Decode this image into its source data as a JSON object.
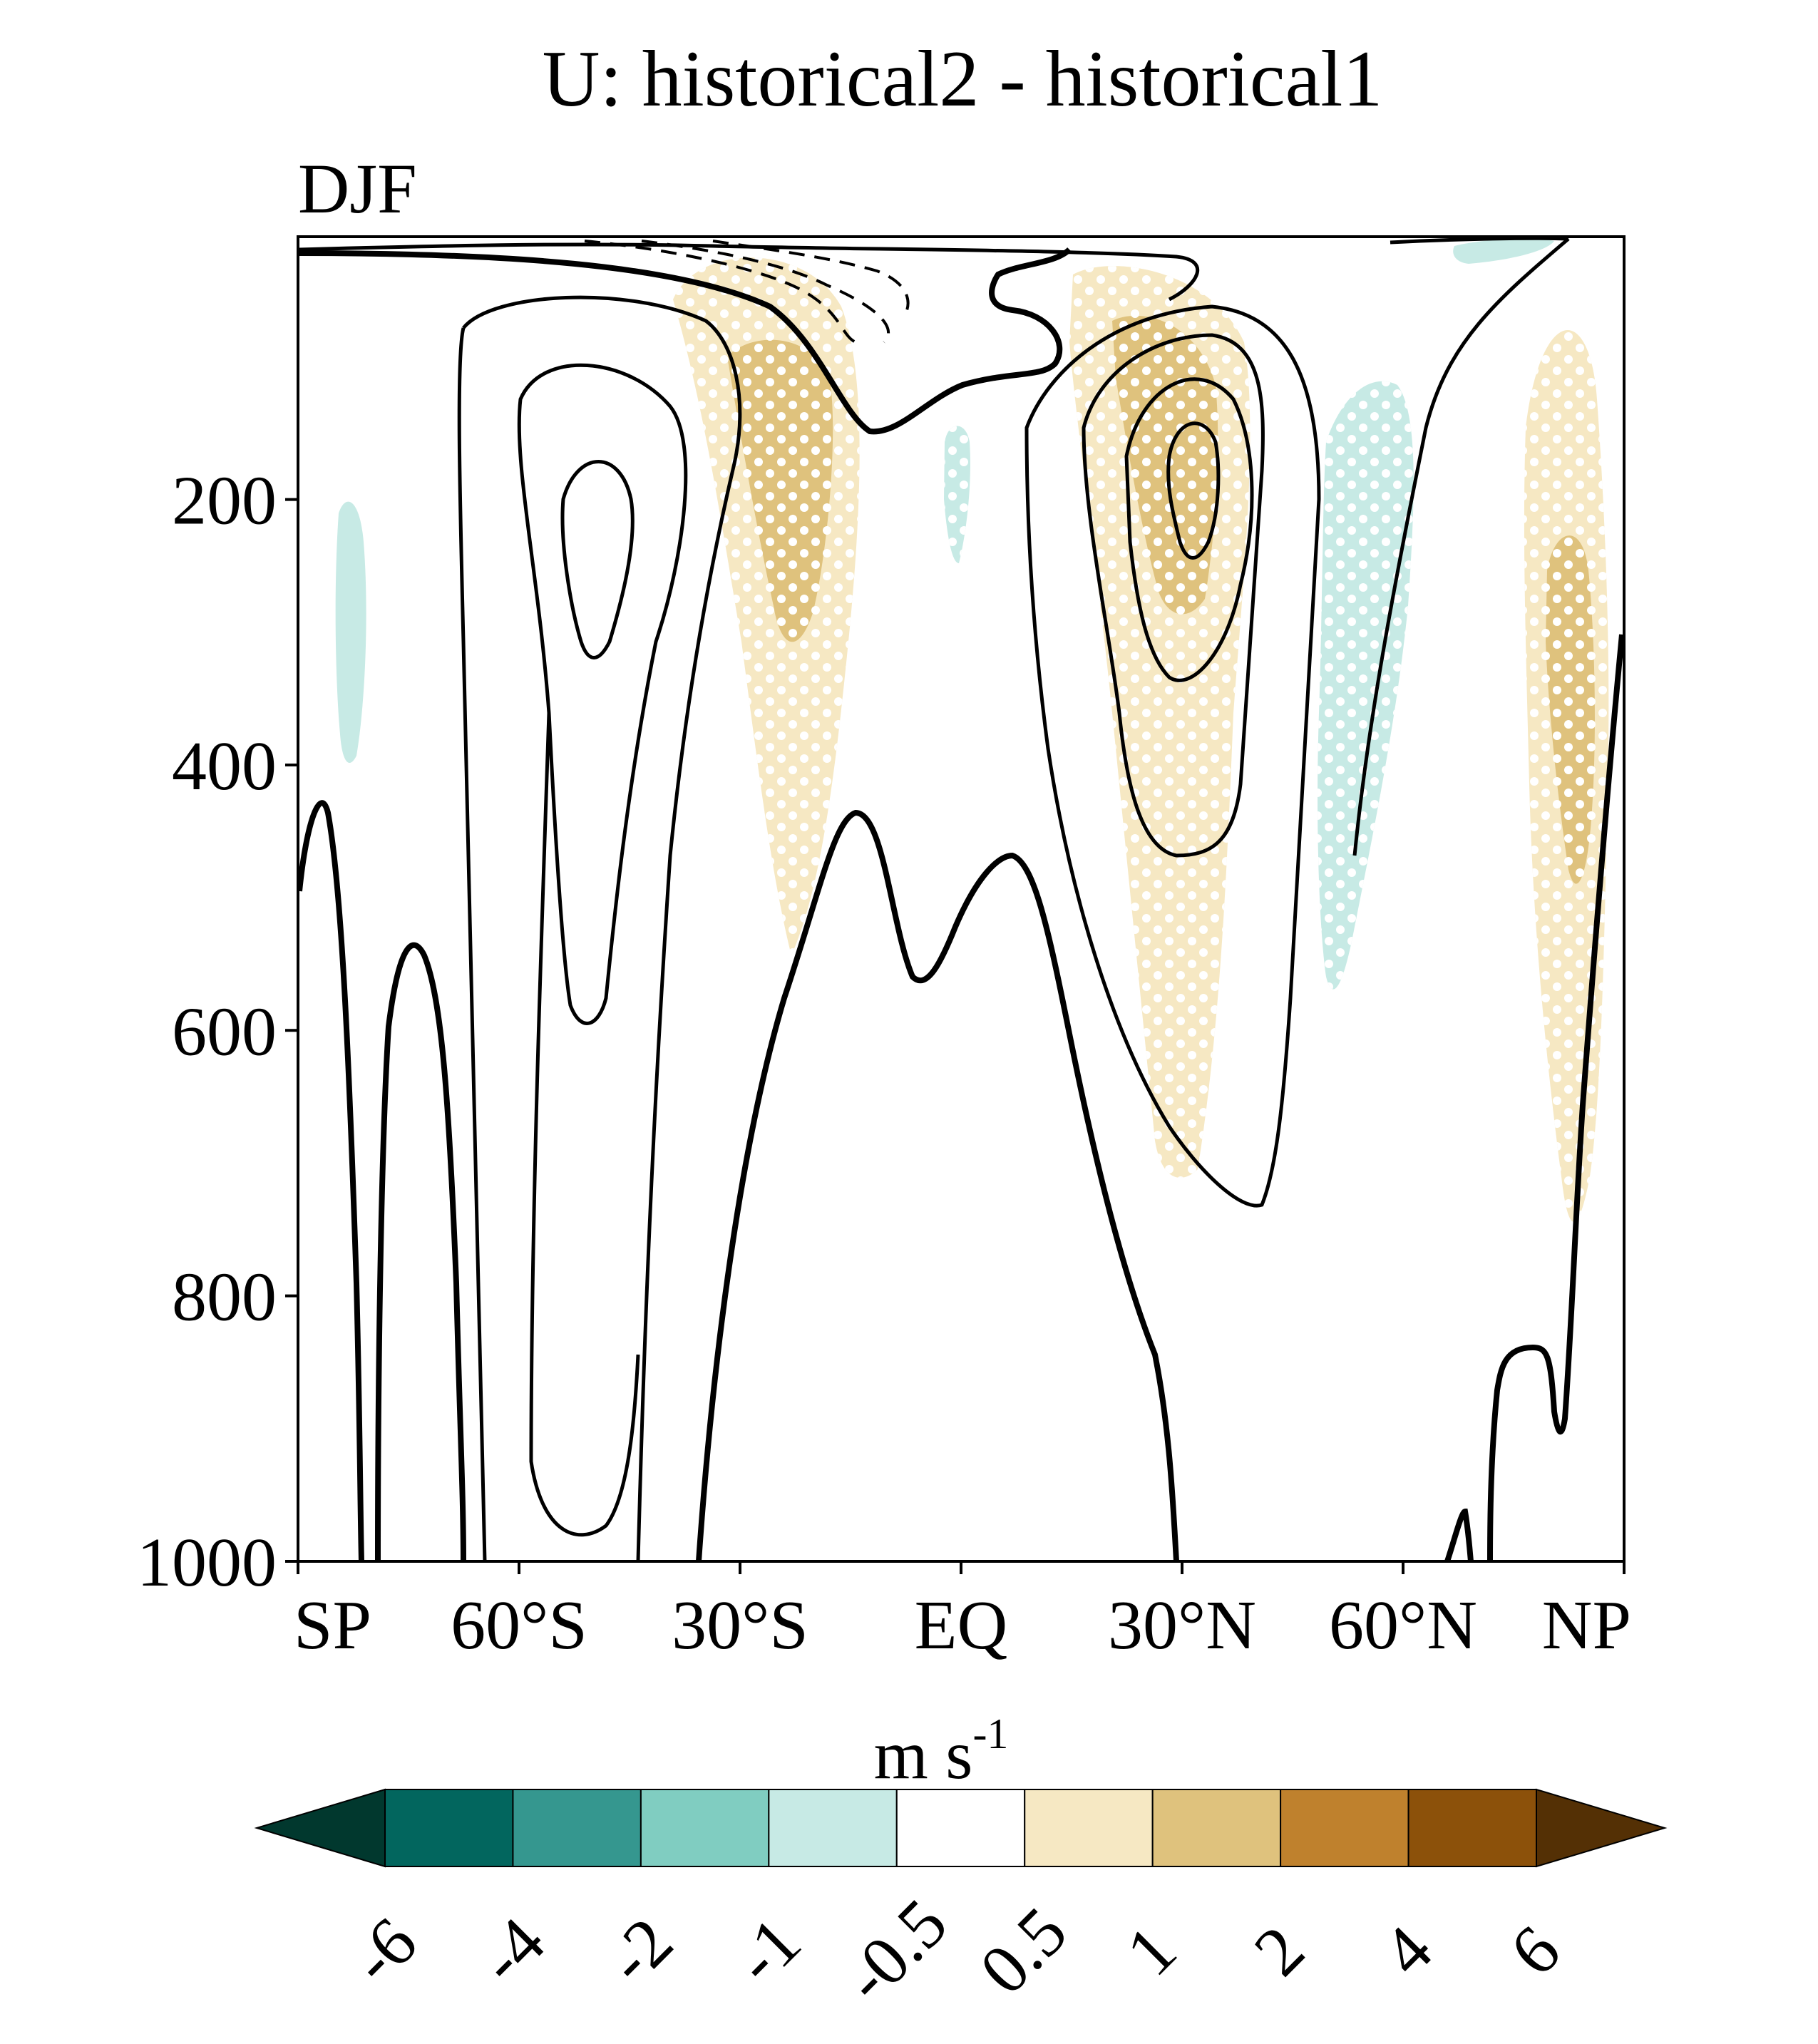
{
  "chart_data": {
    "type": "heatmap",
    "title": "U: historical2 - historical1",
    "subtitle": "DJF",
    "xlabel": "",
    "ylabel": "",
    "x_ticks": [
      "SP",
      "60°S",
      "30°S",
      "EQ",
      "30°N",
      "60°N",
      "NP"
    ],
    "x_tick_values": [
      -90,
      -60,
      -30,
      0,
      30,
      60,
      90
    ],
    "xlim": [
      -90,
      90
    ],
    "y_ticks": [
      "200",
      "400",
      "600",
      "800",
      "1000"
    ],
    "y_tick_values": [
      200,
      400,
      600,
      800,
      1000
    ],
    "ylim": [
      1000,
      2
    ],
    "y_reversed": true,
    "colorbar": {
      "label": "m s",
      "label_exponent": "-1",
      "levels": [
        "-6",
        "-4",
        "-2",
        "-1",
        "-0.5",
        "0.5",
        "1",
        "2",
        "4",
        "6"
      ],
      "colors": [
        "#01382e",
        "#02665e",
        "#35978f",
        "#80cdc1",
        "#c7eae5",
        "#ffffff",
        "#f6e8c3",
        "#dfc27d",
        "#bf812d",
        "#8c510a",
        "#543005"
      ]
    },
    "shading": [
      {
        "name": "positive anomaly 30S upper",
        "lat_center": -24,
        "p_top": 50,
        "p_bottom": 550,
        "value": 1.0
      },
      {
        "name": "positive anomaly 30S core",
        "lat_center": -22,
        "p_top": 90,
        "p_bottom": 320,
        "value": 1.5
      },
      {
        "name": "positive anomaly 30N",
        "lat_center": 30,
        "p_top": 30,
        "p_bottom": 710,
        "value": 1.0
      },
      {
        "name": "positive anomaly 30N core",
        "lat_center": 30,
        "p_top": 70,
        "p_bottom": 290,
        "value": 1.5
      },
      {
        "name": "positive anomaly high north",
        "lat_center": 85,
        "p_top": 60,
        "p_bottom": 750,
        "value": 1.0
      },
      {
        "name": "positive anomaly high north core",
        "lat_center": 85,
        "p_top": 225,
        "p_bottom": 490,
        "value": 1.5
      },
      {
        "name": "negative anomaly 50N",
        "lat_center": 48,
        "p_top": 110,
        "p_bottom": 580,
        "value": -0.7
      },
      {
        "name": "negative anomaly 84S",
        "lat_center": -84,
        "p_top": 200,
        "p_bottom": 400,
        "value": -0.7
      },
      {
        "name": "negative anomaly equator",
        "lat_center": 0,
        "p_top": 145,
        "p_bottom": 245,
        "value": -0.7
      }
    ],
    "contours": "climatological zonal wind (positive solid, negative dashed, zero thick)"
  }
}
